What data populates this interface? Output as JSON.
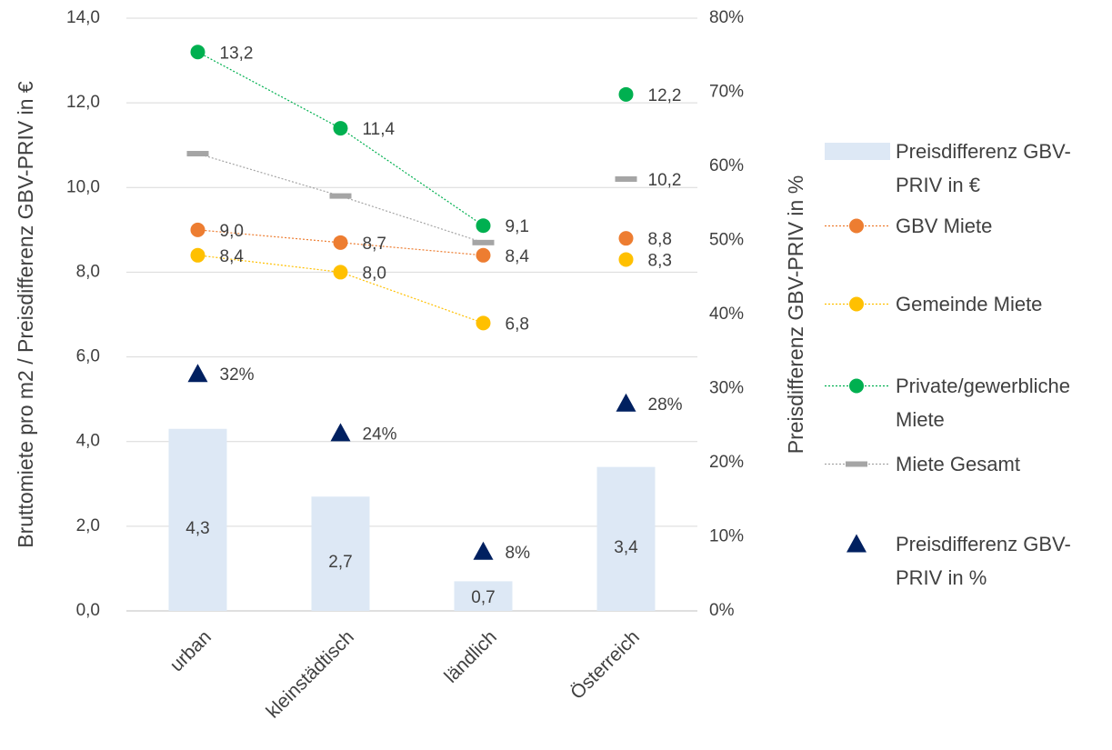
{
  "chart_data": {
    "type": "combo",
    "categories": [
      "urban",
      "kleinstädtisch",
      "ländlich",
      "Österreich"
    ],
    "ylabel": "Bruttomiete pro m2 / Preisdifferenz GBV-PRIV in €",
    "y2label": "Preisdifferenz GBV-PRIV in %",
    "ylim": [
      0,
      14
    ],
    "yticks": [
      {
        "value": 0,
        "label": "0,0"
      },
      {
        "value": 2,
        "label": "2,0"
      },
      {
        "value": 4,
        "label": "4,0"
      },
      {
        "value": 6,
        "label": "6,0"
      },
      {
        "value": 8,
        "label": "8,0"
      },
      {
        "value": 10,
        "label": "10,0"
      },
      {
        "value": 12,
        "label": "12,0"
      },
      {
        "value": 14,
        "label": "14,0"
      }
    ],
    "y2lim": [
      0,
      80
    ],
    "y2ticks": [
      {
        "value": 0,
        "label": "0%"
      },
      {
        "value": 10,
        "label": "10%"
      },
      {
        "value": 20,
        "label": "20%"
      },
      {
        "value": 30,
        "label": "30%"
      },
      {
        "value": 40,
        "label": "40%"
      },
      {
        "value": 50,
        "label": "50%"
      },
      {
        "value": 60,
        "label": "60%"
      },
      {
        "value": 70,
        "label": "70%"
      },
      {
        "value": 80,
        "label": "80%"
      }
    ],
    "grid": true,
    "legend": "right",
    "line_break_before_last": true,
    "series": [
      {
        "name": "Preisdifferenz GBV-PRIV in €",
        "mark": "bar",
        "color": "#dde8f5",
        "values": [
          4.3,
          2.7,
          0.7,
          3.4
        ],
        "value_labels": [
          "4,3",
          "2,7",
          "0,7",
          "3,4"
        ]
      },
      {
        "name": "GBV Miete",
        "mark": "circle",
        "line": true,
        "color": "#ed7d31",
        "values": [
          9.0,
          8.7,
          8.4,
          8.8
        ],
        "value_labels": [
          "9,0",
          "8,7",
          "8,4",
          "8,8"
        ]
      },
      {
        "name": "Gemeinde Miete",
        "mark": "circle",
        "line": true,
        "color": "#ffc000",
        "values": [
          8.4,
          8.0,
          6.8,
          8.3
        ],
        "value_labels": [
          "8,4",
          "8,0",
          "6,8",
          "8,3"
        ]
      },
      {
        "name": "Private/gewerbliche Miete",
        "mark": "circle",
        "line": true,
        "color": "#00b050",
        "values": [
          13.2,
          11.4,
          9.1,
          12.2
        ],
        "value_labels": [
          "13,2",
          "11,4",
          "9,1",
          "12,2"
        ]
      },
      {
        "name": "Miete Gesamt",
        "mark": "dash",
        "line": true,
        "color": "#a5a5a5",
        "values": [
          10.8,
          9.8,
          8.7,
          10.2
        ],
        "value_labels": [
          null,
          null,
          null,
          "10,2"
        ]
      },
      {
        "name": "Preisdifferenz GBV-PRIV in %",
        "mark": "triangle",
        "axis": "y2",
        "color": "#002060",
        "values": [
          32,
          24,
          8,
          28
        ],
        "value_labels": [
          "32%",
          "24%",
          "8%",
          "28%"
        ]
      }
    ]
  }
}
